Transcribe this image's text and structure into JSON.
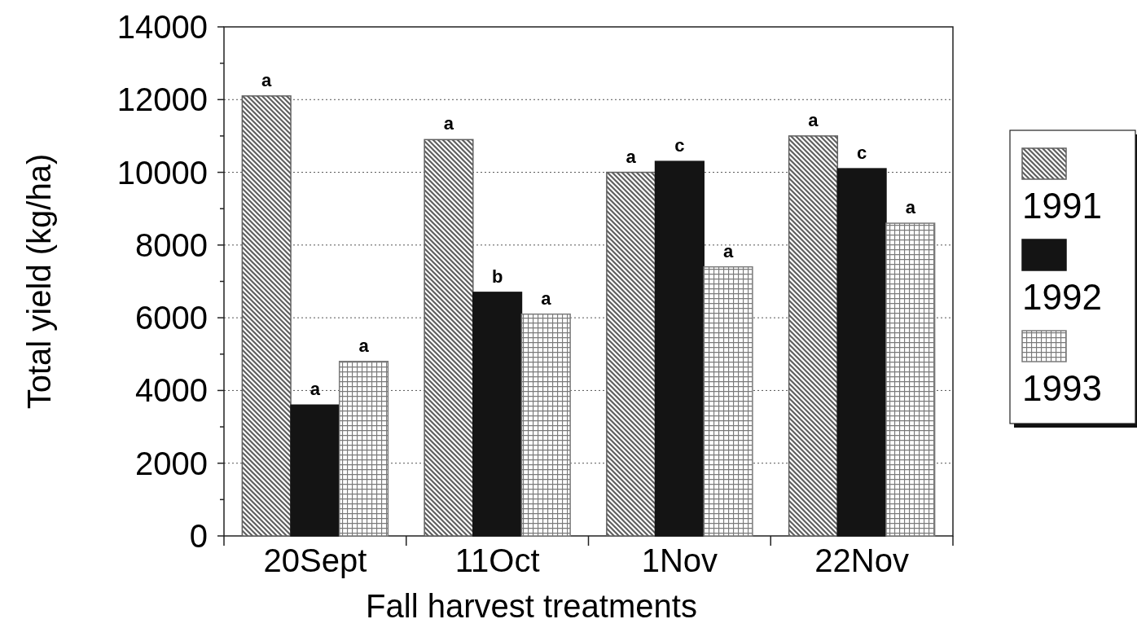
{
  "chart_data": {
    "type": "bar",
    "xlabel": "Fall harvest treatments",
    "ylabel": "Total yield (kg/ha)",
    "categories": [
      "20Sept",
      "11Oct",
      "1Nov",
      "22Nov"
    ],
    "series": [
      {
        "name": "1991",
        "color": "#606060",
        "values": [
          12100,
          10900,
          10000,
          11000
        ]
      },
      {
        "name": "1992",
        "color": "#141414",
        "values": [
          3600,
          6700,
          10300,
          10100
        ]
      },
      {
        "name": "1993",
        "color": "#7a7a7a",
        "values": [
          4800,
          6100,
          7400,
          8600
        ]
      }
    ],
    "ylim": [
      0,
      14000
    ],
    "yticks": [
      0,
      {
        "value": 1000,
        "label": null
      },
      2000,
      {
        "value": 3000,
        "label": null
      },
      4000,
      {
        "value": 5000,
        "label": null
      },
      6000,
      {
        "value": 7000,
        "label": null
      },
      8000,
      {
        "value": 9000,
        "label": null
      },
      10000,
      {
        "value": 11000,
        "label": null
      },
      12000,
      {
        "value": 13000,
        "label": null
      },
      14000
    ],
    "grid": "y",
    "legend": "right",
    "annotations": [
      "a",
      "a",
      "a",
      "a",
      "b",
      "a",
      "a",
      "c",
      "a",
      "a",
      "c",
      "a"
    ]
  }
}
